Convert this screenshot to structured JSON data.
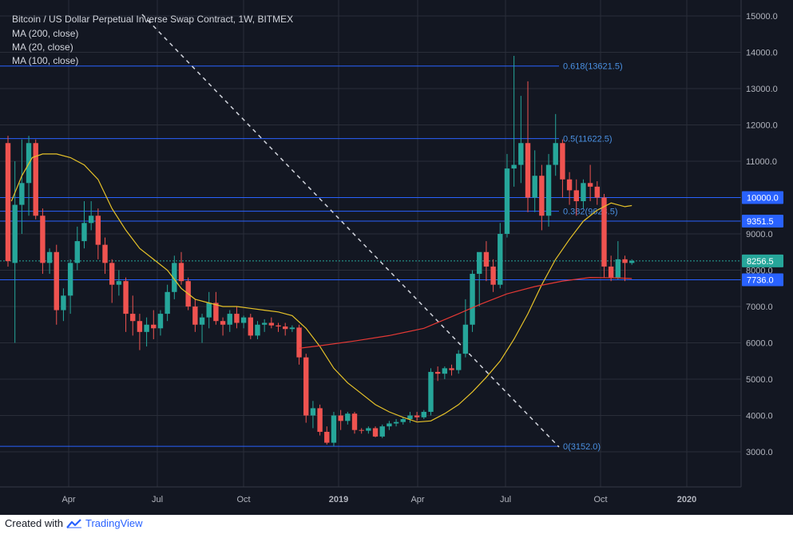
{
  "legend": {
    "title": "Bitcoin / US Dollar Perpetual Inverse Swap Contract, 1W, BITMEX",
    "ma_lines": [
      "MA (200, close)",
      "MA (20, close)",
      "MA (100, close)"
    ]
  },
  "footer": {
    "created_with": "Created with",
    "brand": "TradingView"
  },
  "colors": {
    "background": "#131722",
    "up": "#26a69a",
    "down": "#ef5350",
    "fib_line": "#2962ff",
    "ma20": "#e6c229",
    "ma100": "#e53935",
    "grid": "#2a2e39"
  },
  "chart_data": {
    "type": "candlestick",
    "title": "Bitcoin / US Dollar Perpetual Inverse Swap Contract, 1W, BITMEX",
    "y_axis_ticks": [
      "3000.0",
      "4000.0",
      "5000.0",
      "6000.0",
      "7000.0",
      "8000.0",
      "9000.0",
      "10000.0",
      "11000.0",
      "12000.0",
      "13000.0",
      "14000.0",
      "15000.0"
    ],
    "x_axis_ticks": [
      "Apr",
      "Jul",
      "Oct",
      "2019",
      "Apr",
      "Jul",
      "Oct",
      "2020"
    ],
    "ylim": [
      2000,
      15300
    ],
    "y_scale": "linear",
    "price_tags": [
      {
        "label": "10000.0",
        "value": 10000,
        "style": "blue"
      },
      {
        "label": "9351.5",
        "value": 9351.5,
        "style": "blue"
      },
      {
        "label": "8256.5",
        "value": 8256.5,
        "style": "teal"
      },
      {
        "label": "7736.0",
        "value": 7736,
        "style": "blue"
      }
    ],
    "fib_levels": [
      {
        "label": "0.618(13621.5)",
        "value": 13621.5
      },
      {
        "label": "0.5(11622.5)",
        "value": 11622.5
      },
      {
        "label": "0.382(9623.5)",
        "value": 9623.5
      },
      {
        "label": "0(3152.0)",
        "value": 3152
      }
    ],
    "candles": [
      [
        11500,
        11700,
        8100,
        8250
      ],
      [
        8200,
        11000,
        6000,
        9800
      ],
      [
        9800,
        11600,
        9000,
        10400
      ],
      [
        10400,
        11700,
        9500,
        11500
      ],
      [
        11500,
        11600,
        9400,
        9500
      ],
      [
        9500,
        9700,
        7900,
        8200
      ],
      [
        8200,
        8600,
        7900,
        8500
      ],
      [
        8500,
        8700,
        6500,
        6900
      ],
      [
        6900,
        7500,
        6600,
        7300
      ],
      [
        7300,
        8300,
        6800,
        8200
      ],
      [
        8200,
        9200,
        8000,
        8800
      ],
      [
        8800,
        9900,
        8600,
        9300
      ],
      [
        9300,
        9900,
        9100,
        9500
      ],
      [
        9500,
        9700,
        8300,
        8700
      ],
      [
        8700,
        8900,
        7900,
        8200
      ],
      [
        8200,
        8300,
        7100,
        7600
      ],
      [
        7600,
        8000,
        7300,
        7700
      ],
      [
        7700,
        7800,
        6300,
        6800
      ],
      [
        6800,
        7300,
        6200,
        6600
      ],
      [
        6600,
        6800,
        5800,
        6300
      ],
      [
        6300,
        6700,
        5900,
        6500
      ],
      [
        6500,
        6900,
        6100,
        6400
      ],
      [
        6400,
        6900,
        6200,
        6800
      ],
      [
        6800,
        7600,
        6600,
        7400
      ],
      [
        7400,
        8400,
        7200,
        8200
      ],
      [
        8200,
        8500,
        7600,
        7700
      ],
      [
        7700,
        7800,
        6900,
        7000
      ],
      [
        7000,
        7200,
        6300,
        6500
      ],
      [
        6500,
        6800,
        6000,
        6700
      ],
      [
        6700,
        7400,
        6400,
        7100
      ],
      [
        7100,
        7400,
        6500,
        6600
      ],
      [
        6600,
        6700,
        6200,
        6500
      ],
      [
        6500,
        6900,
        6300,
        6800
      ],
      [
        6800,
        7000,
        6400,
        6550
      ],
      [
        6550,
        6750,
        6400,
        6700
      ],
      [
        6700,
        6800,
        6100,
        6200
      ],
      [
        6200,
        6600,
        6100,
        6500
      ],
      [
        6500,
        6650,
        6300,
        6550
      ],
      [
        6550,
        6700,
        6400,
        6480
      ],
      [
        6480,
        6550,
        6300,
        6450
      ],
      [
        6450,
        6550,
        6200,
        6380
      ],
      [
        6380,
        6480,
        6300,
        6420
      ],
      [
        6420,
        6500,
        5400,
        5600
      ],
      [
        5600,
        5700,
        3800,
        4000
      ],
      [
        4000,
        4400,
        3650,
        4200
      ],
      [
        4200,
        4300,
        3450,
        3550
      ],
      [
        3550,
        3700,
        3200,
        3250
      ],
      [
        3250,
        4100,
        3150,
        4000
      ],
      [
        4000,
        4150,
        3600,
        3850
      ],
      [
        3850,
        4100,
        3750,
        4050
      ],
      [
        4050,
        4100,
        3500,
        3600
      ],
      [
        3600,
        3650,
        3500,
        3580
      ],
      [
        3580,
        3700,
        3500,
        3650
      ],
      [
        3650,
        3700,
        3400,
        3420
      ],
      [
        3420,
        3750,
        3380,
        3700
      ],
      [
        3700,
        3850,
        3600,
        3780
      ],
      [
        3780,
        3900,
        3700,
        3820
      ],
      [
        3820,
        3950,
        3750,
        3900
      ],
      [
        3900,
        4100,
        3800,
        4000
      ],
      [
        4000,
        4100,
        3850,
        3950
      ],
      [
        3950,
        4150,
        3900,
        4100
      ],
      [
        4100,
        5300,
        4000,
        5200
      ],
      [
        5200,
        5350,
        4950,
        5150
      ],
      [
        5150,
        5350,
        5000,
        5300
      ],
      [
        5300,
        5400,
        5100,
        5250
      ],
      [
        5250,
        5800,
        5150,
        5700
      ],
      [
        5700,
        7200,
        5600,
        6500
      ],
      [
        6500,
        8000,
        6300,
        7900
      ],
      [
        7900,
        8400,
        7000,
        8500
      ],
      [
        8500,
        8800,
        7700,
        8100
      ],
      [
        8100,
        8300,
        7400,
        7600
      ],
      [
        7600,
        9300,
        7500,
        9000
      ],
      [
        9000,
        11200,
        8900,
        10800
      ],
      [
        10800,
        13900,
        10300,
        10900
      ],
      [
        10900,
        12800,
        10400,
        11500
      ],
      [
        11500,
        13200,
        9600,
        10000
      ],
      [
        10000,
        11300,
        9600,
        10600
      ],
      [
        10600,
        10900,
        9100,
        9500
      ],
      [
        9500,
        11200,
        9200,
        10900
      ],
      [
        10900,
        12300,
        10600,
        11500
      ],
      [
        11500,
        11600,
        10000,
        10500
      ],
      [
        10500,
        10700,
        9800,
        10200
      ],
      [
        10200,
        10500,
        9500,
        9900
      ],
      [
        9900,
        10500,
        9700,
        10400
      ],
      [
        10400,
        10900,
        9900,
        10300
      ],
      [
        10300,
        10450,
        9800,
        10000
      ],
      [
        10000,
        10100,
        7800,
        8100
      ],
      [
        8100,
        8400,
        7700,
        7800
      ],
      [
        7800,
        8800,
        7750,
        8300
      ],
      [
        8300,
        8400,
        7700,
        8200
      ],
      [
        8200,
        8300,
        8150,
        8256.5
      ]
    ],
    "ma20": [
      [
        0.5,
        9900
      ],
      [
        2,
        10600
      ],
      [
        3.5,
        11100
      ],
      [
        5,
        11200
      ],
      [
        7,
        11200
      ],
      [
        9,
        11100
      ],
      [
        11,
        10900
      ],
      [
        13,
        10500
      ],
      [
        15,
        9700
      ],
      [
        17,
        9100
      ],
      [
        19,
        8600
      ],
      [
        21,
        8300
      ],
      [
        23,
        8000
      ],
      [
        25,
        7500
      ],
      [
        27,
        7200
      ],
      [
        29,
        7100
      ],
      [
        31,
        7000
      ],
      [
        33,
        7000
      ],
      [
        35,
        6950
      ],
      [
        37,
        6900
      ],
      [
        39,
        6850
      ],
      [
        41,
        6750
      ],
      [
        43,
        6400
      ],
      [
        45,
        5900
      ],
      [
        47,
        5300
      ],
      [
        49,
        4900
      ],
      [
        51,
        4600
      ],
      [
        53,
        4300
      ],
      [
        55,
        4100
      ],
      [
        57,
        3950
      ],
      [
        59,
        3820
      ],
      [
        61,
        3850
      ],
      [
        63,
        4050
      ],
      [
        65,
        4300
      ],
      [
        67,
        4650
      ],
      [
        69,
        5050
      ],
      [
        71,
        5500
      ],
      [
        73,
        6100
      ],
      [
        75,
        6800
      ],
      [
        77,
        7600
      ],
      [
        79,
        8300
      ],
      [
        81,
        8850
      ],
      [
        83,
        9350
      ],
      [
        85,
        9650
      ],
      [
        87,
        9850
      ],
      [
        89,
        9750
      ],
      [
        90,
        9780
      ]
    ],
    "ma100": [
      [
        42,
        5850
      ],
      [
        45,
        5920
      ],
      [
        50,
        6050
      ],
      [
        55,
        6200
      ],
      [
        60,
        6400
      ],
      [
        65,
        6800
      ],
      [
        68,
        7050
      ],
      [
        72,
        7350
      ],
      [
        76,
        7550
      ],
      [
        80,
        7700
      ],
      [
        84,
        7800
      ],
      [
        88,
        7790
      ],
      [
        90,
        7770
      ]
    ]
  }
}
